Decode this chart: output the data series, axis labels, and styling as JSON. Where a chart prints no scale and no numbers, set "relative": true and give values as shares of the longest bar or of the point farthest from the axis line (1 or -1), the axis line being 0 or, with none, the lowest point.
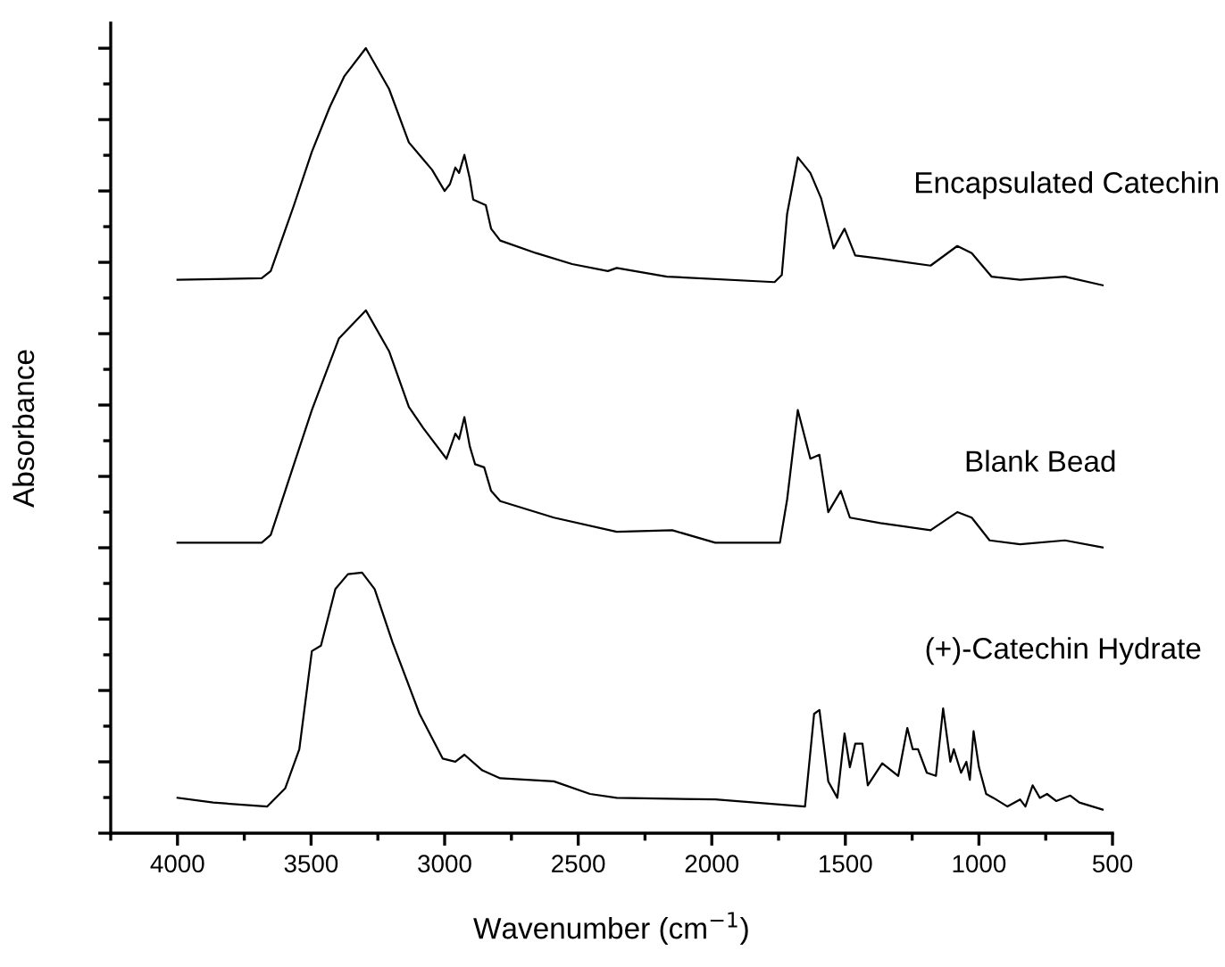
{
  "chart_data": {
    "type": "line",
    "relative": true,
    "xlabel": "Wavenumber (cm$^{−1}$)",
    "ylabel": "Absorbance",
    "xlim": [
      4250,
      500
    ],
    "xticks": [
      4000,
      3500,
      3000,
      2500,
      2000,
      1500,
      1000,
      500
    ],
    "grid": false,
    "legend": false,
    "marker": "none",
    "line_style": "solid",
    "series": [
      {
        "name": "Encapsulated Catechin",
        "color": "#000000",
        "x": [
          4000,
          3685,
          3651,
          3564,
          3497,
          3430,
          3376,
          3295,
          3208,
          3134,
          3087,
          3047,
          3000,
          2980,
          2960,
          2946,
          2926,
          2906,
          2893,
          2846,
          2826,
          2792,
          2658,
          2523,
          2389,
          2356,
          2168,
          1765,
          1738,
          1718,
          1678,
          1631,
          1591,
          1544,
          1503,
          1463,
          1369,
          1181,
          1081,
          1027,
          953,
          846,
          678,
          537
        ],
        "values": [
          0.705,
          0.707,
          0.716,
          0.8,
          0.868,
          0.925,
          0.964,
          1.0,
          0.948,
          0.88,
          0.861,
          0.845,
          0.818,
          0.827,
          0.848,
          0.841,
          0.864,
          0.834,
          0.807,
          0.8,
          0.77,
          0.755,
          0.739,
          0.725,
          0.716,
          0.72,
          0.709,
          0.702,
          0.711,
          0.789,
          0.861,
          0.841,
          0.809,
          0.745,
          0.77,
          0.736,
          0.732,
          0.723,
          0.748,
          0.739,
          0.709,
          0.705,
          0.709,
          0.698
        ]
      },
      {
        "name": "Blank Bead",
        "color": "#000000",
        "x": [
          4000,
          3685,
          3651,
          3564,
          3497,
          3396,
          3295,
          3208,
          3134,
          3080,
          2993,
          2960,
          2946,
          2926,
          2906,
          2886,
          2852,
          2826,
          2792,
          2591,
          2356,
          2148,
          1987,
          1745,
          1718,
          1678,
          1631,
          1597,
          1564,
          1517,
          1483,
          1369,
          1181,
          1081,
          1027,
          960,
          846,
          678,
          537
        ],
        "values": [
          0.37,
          0.37,
          0.38,
          0.47,
          0.539,
          0.63,
          0.666,
          0.614,
          0.543,
          0.516,
          0.477,
          0.509,
          0.502,
          0.53,
          0.493,
          0.47,
          0.466,
          0.436,
          0.423,
          0.402,
          0.384,
          0.386,
          0.37,
          0.37,
          0.425,
          0.539,
          0.477,
          0.482,
          0.409,
          0.436,
          0.402,
          0.395,
          0.386,
          0.409,
          0.402,
          0.373,
          0.368,
          0.373,
          0.364
        ]
      },
      {
        "name": "(+)-Catechin Hydrate",
        "color": "#000000",
        "x": [
          4000,
          3866,
          3664,
          3597,
          3544,
          3497,
          3463,
          3409,
          3362,
          3309,
          3262,
          3195,
          3094,
          3007,
          2960,
          2926,
          2859,
          2792,
          2591,
          2456,
          2356,
          1987,
          1651,
          1617,
          1597,
          1564,
          1530,
          1503,
          1483,
          1463,
          1436,
          1416,
          1362,
          1302,
          1268,
          1248,
          1228,
          1195,
          1161,
          1134,
          1107,
          1094,
          1067,
          1047,
          1034,
          1020,
          1000,
          973,
          946,
          893,
          846,
          826,
          799,
          772,
          745,
          711,
          658,
          624,
          537
        ],
        "values": [
          0.045,
          0.039,
          0.034,
          0.057,
          0.107,
          0.232,
          0.239,
          0.311,
          0.33,
          0.332,
          0.311,
          0.243,
          0.152,
          0.095,
          0.091,
          0.1,
          0.08,
          0.07,
          0.066,
          0.05,
          0.045,
          0.043,
          0.034,
          0.152,
          0.157,
          0.066,
          0.045,
          0.127,
          0.084,
          0.114,
          0.114,
          0.061,
          0.089,
          0.073,
          0.134,
          0.107,
          0.107,
          0.077,
          0.073,
          0.159,
          0.091,
          0.107,
          0.077,
          0.091,
          0.068,
          0.13,
          0.084,
          0.05,
          0.045,
          0.034,
          0.043,
          0.034,
          0.061,
          0.045,
          0.05,
          0.041,
          0.048,
          0.039,
          0.03
        ]
      }
    ]
  }
}
